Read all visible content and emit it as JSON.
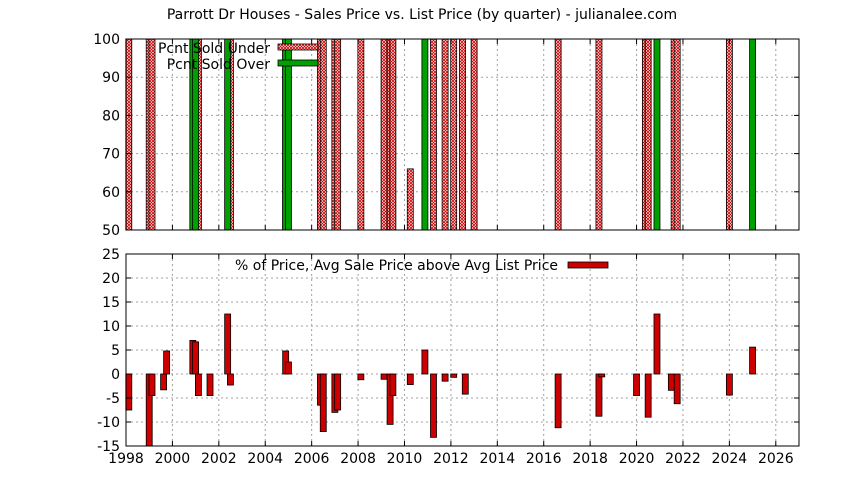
{
  "chart_data": [
    {
      "type": "bar",
      "title": "Parrott Dr Houses - Sales Price vs. List Price (by quarter) - julianalee.com",
      "xlabel": "",
      "ylabel": "",
      "xlim": [
        1998,
        2027
      ],
      "ylim": [
        50,
        100
      ],
      "yticks": [
        50,
        60,
        70,
        80,
        90,
        100
      ],
      "grid": true,
      "legend_position": "top-left",
      "series": [
        {
          "name": "Pcnt Sold Under",
          "color": "#cc0000",
          "pattern": "crosshatch",
          "x": [
            1998.12,
            1999.0,
            1999.12,
            2001.12,
            2002.5,
            2004.88,
            2006.38,
            2006.5,
            2007.0,
            2007.12,
            2008.12,
            2009.12,
            2009.38,
            2009.5,
            2010.25,
            2011.25,
            2011.75,
            2012.12,
            2012.5,
            2013.0,
            2016.62,
            2018.38,
            2020.38,
            2020.5,
            2021.62,
            2021.75,
            2024.0
          ],
          "values": [
            100,
            100,
            100,
            100,
            100,
            100,
            100,
            100,
            100,
            100,
            100,
            100,
            100,
            100,
            66,
            100,
            100,
            100,
            100,
            100,
            100,
            100,
            100,
            100,
            100,
            100,
            100
          ]
        },
        {
          "name": "Pcnt Sold Over",
          "color": "#00a000",
          "pattern": "solid",
          "x": [
            2000.88,
            2001.0,
            2002.38,
            2004.88,
            2005.0,
            2010.88,
            2020.88,
            2025.0
          ],
          "values": [
            100,
            100,
            100,
            100,
            100,
            100,
            100,
            100
          ]
        }
      ]
    },
    {
      "type": "bar",
      "title": "",
      "xlabel": "",
      "ylabel": "",
      "xlim": [
        1998,
        2027
      ],
      "ylim": [
        -15,
        25
      ],
      "yticks": [
        -15,
        -10,
        -5,
        0,
        5,
        10,
        15,
        20,
        25
      ],
      "xticks": [
        1998,
        2000,
        2002,
        2004,
        2006,
        2008,
        2010,
        2012,
        2014,
        2016,
        2018,
        2020,
        2022,
        2024,
        2026
      ],
      "grid": true,
      "legend_position": "top-center",
      "series": [
        {
          "name": "% of Price, Avg Sale Price above Avg List Price",
          "color": "#cc0000",
          "x": [
            1998.12,
            1999.0,
            1999.12,
            1999.62,
            1999.75,
            2000.88,
            2001.0,
            2001.12,
            2001.62,
            2002.38,
            2002.5,
            2004.88,
            2005.0,
            2006.38,
            2006.5,
            2007.0,
            2007.12,
            2008.12,
            2009.12,
            2009.38,
            2009.5,
            2010.25,
            2010.88,
            2011.25,
            2011.75,
            2012.12,
            2012.62,
            2016.62,
            2018.38,
            2018.5,
            2020.0,
            2020.5,
            2020.88,
            2021.5,
            2021.75,
            2024.0,
            2025.0
          ],
          "values": [
            -7.5,
            -15,
            -4.5,
            -3.3,
            4.8,
            7.0,
            6.7,
            -4.5,
            -4.5,
            12.5,
            -2.3,
            4.8,
            2.5,
            -6.5,
            -12,
            -8,
            -7.5,
            -1.2,
            -1.1,
            -10.5,
            -4.5,
            -2.2,
            5.0,
            -13.2,
            -1.5,
            -0.7,
            -4.2,
            -11.2,
            -8.8,
            -0.6,
            -4.5,
            -9,
            12.5,
            -3.4,
            -6.2,
            -4.4,
            5.6
          ]
        }
      ]
    }
  ]
}
